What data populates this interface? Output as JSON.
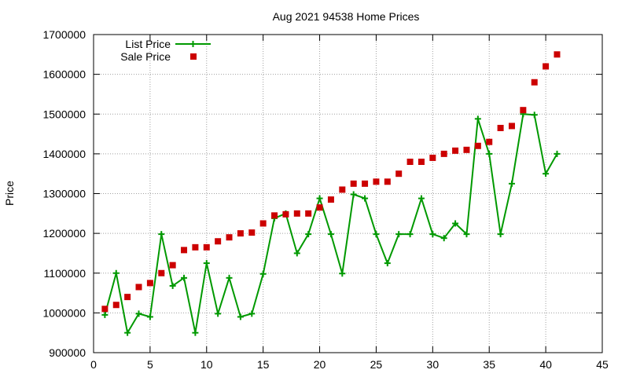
{
  "chart_data": {
    "type": "scatter",
    "title": "Aug 2021 94538 Home Prices",
    "xlabel": "",
    "ylabel": "Price",
    "xlim": [
      0,
      45
    ],
    "ylim": [
      900000,
      1700000
    ],
    "x_ticks": [
      0,
      5,
      10,
      15,
      20,
      25,
      30,
      35,
      40,
      45
    ],
    "y_ticks": [
      900000,
      1000000,
      1100000,
      1200000,
      1300000,
      1400000,
      1500000,
      1600000,
      1700000
    ],
    "grid": true,
    "legend_position": "top-left",
    "series": [
      {
        "name": "List Price",
        "style": "line-with-plus-markers",
        "color": "#009900",
        "x": [
          1,
          2,
          3,
          4,
          5,
          6,
          7,
          8,
          9,
          10,
          11,
          12,
          13,
          14,
          15,
          16,
          17,
          18,
          19,
          20,
          21,
          22,
          23,
          24,
          25,
          26,
          27,
          28,
          29,
          30,
          31,
          32,
          33,
          34,
          35,
          36,
          37,
          38,
          39,
          40,
          41
        ],
        "y": [
          995000,
          1100000,
          950000,
          998000,
          990000,
          1198000,
          1068000,
          1088000,
          950000,
          1125000,
          998000,
          1088000,
          990000,
          998000,
          1098000,
          1238000,
          1250000,
          1150000,
          1198000,
          1288000,
          1198000,
          1099000,
          1298000,
          1288000,
          1198000,
          1125000,
          1198000,
          1198000,
          1288000,
          1198000,
          1188000,
          1225000,
          1198000,
          1488000,
          1400000,
          1198000,
          1325000,
          1500000,
          1498000,
          1350000,
          1400000
        ]
      },
      {
        "name": "Sale Price",
        "style": "square-markers",
        "color": "#cc0000",
        "x": [
          1,
          2,
          3,
          4,
          5,
          6,
          7,
          8,
          9,
          10,
          11,
          12,
          13,
          14,
          15,
          16,
          17,
          18,
          19,
          20,
          21,
          22,
          23,
          24,
          25,
          26,
          27,
          28,
          29,
          30,
          31,
          32,
          33,
          34,
          35,
          36,
          37,
          38,
          39,
          40,
          41
        ],
        "y": [
          1010000,
          1020000,
          1040000,
          1065000,
          1075000,
          1100000,
          1120000,
          1158000,
          1165000,
          1165000,
          1180000,
          1190000,
          1200000,
          1202000,
          1225000,
          1245000,
          1248000,
          1250000,
          1250000,
          1265000,
          1285000,
          1310000,
          1325000,
          1325000,
          1330000,
          1330000,
          1350000,
          1380000,
          1380000,
          1390000,
          1400000,
          1408000,
          1410000,
          1420000,
          1430000,
          1465000,
          1470000,
          1510000,
          1580000,
          1620000,
          1650000
        ]
      }
    ]
  }
}
